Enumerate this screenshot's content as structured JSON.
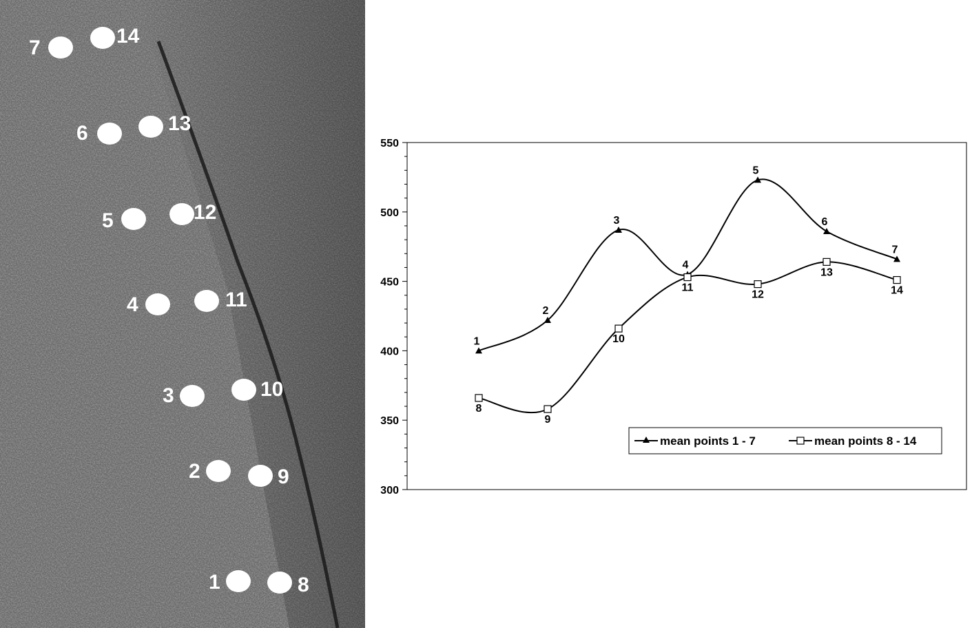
{
  "image_points": [
    {
      "label": "1"
    },
    {
      "label": "2"
    },
    {
      "label": "3"
    },
    {
      "label": "4"
    },
    {
      "label": "5"
    },
    {
      "label": "6"
    },
    {
      "label": "7"
    },
    {
      "label": "8"
    },
    {
      "label": "9"
    },
    {
      "label": "10"
    },
    {
      "label": "11"
    },
    {
      "label": "12"
    },
    {
      "label": "13"
    },
    {
      "label": "14"
    }
  ],
  "chart_data": {
    "type": "line",
    "title": "",
    "xlabel": "",
    "ylabel": "",
    "ylim": [
      300,
      550
    ],
    "y_ticks": [
      "300",
      "350",
      "400",
      "450",
      "500",
      "550"
    ],
    "grid": false,
    "legend_position": "bottom-right",
    "series": [
      {
        "name": "mean points 1 - 7",
        "marker": "filled-triangle",
        "color": "#000000",
        "points": [
          {
            "label": "1",
            "value": 400
          },
          {
            "label": "2",
            "value": 422
          },
          {
            "label": "3",
            "value": 487
          },
          {
            "label": "4",
            "value": 455
          },
          {
            "label": "5",
            "value": 523
          },
          {
            "label": "6",
            "value": 486
          },
          {
            "label": "7",
            "value": 466
          }
        ]
      },
      {
        "name": "mean points 8 - 14",
        "marker": "open-square",
        "color": "#000000",
        "points": [
          {
            "label": "8",
            "value": 366
          },
          {
            "label": "9",
            "value": 358
          },
          {
            "label": "10",
            "value": 416
          },
          {
            "label": "11",
            "value": 453
          },
          {
            "label": "12",
            "value": 448
          },
          {
            "label": "13",
            "value": 464
          },
          {
            "label": "14",
            "value": 451
          }
        ]
      }
    ]
  }
}
